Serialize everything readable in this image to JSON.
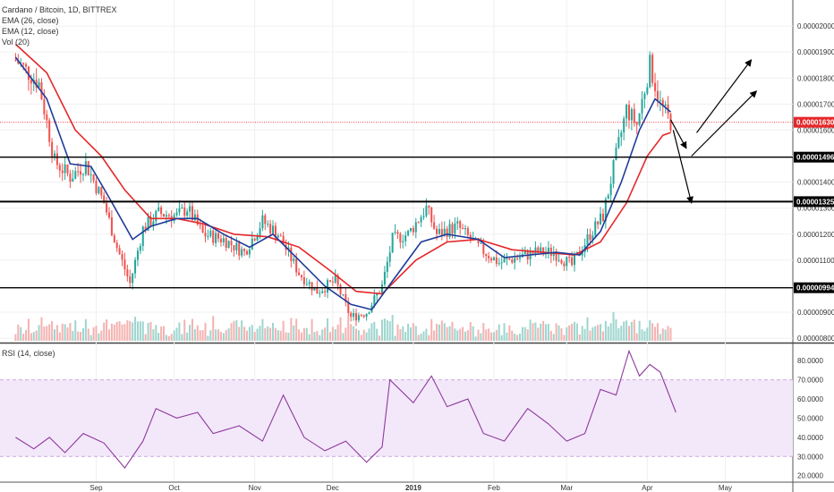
{
  "chart_data": [
    {
      "type": "candlestick",
      "title": "Cardano / Bitcoin, 1D, BITTREX",
      "indicators": [
        "EMA (26, close)",
        "EMA (12, close)",
        "Vol (20)"
      ],
      "y_axis_ticks": [
        "0.00002000",
        "0.00001900",
        "0.00001800",
        "0.00001700",
        "0.00001600",
        "0.00001500",
        "0.00001400",
        "0.00001300",
        "0.00001200",
        "0.00001100",
        "0.00001000",
        "0.00000900",
        "0.00000800"
      ],
      "ylim": [
        7.9e-06,
        2.1e-05
      ],
      "x_axis_ticks": [
        "Sep",
        "Oct",
        "Nov",
        "Dec",
        "2019",
        "Feb",
        "Mar",
        "Apr",
        "May"
      ],
      "price_levels": [
        {
          "label": "0.00001496",
          "value": 1.496e-05
        },
        {
          "label": "0.00001325",
          "value": 1.325e-05
        },
        {
          "label": "0.00000994",
          "value": 9.94e-06
        }
      ],
      "current_price": {
        "label": "0.00001630",
        "value": 1.63e-05
      },
      "close_series": [
        {
          "date": "2018-08-01",
          "close": 1.87e-05
        },
        {
          "date": "2018-08-10",
          "close": 1.78e-05
        },
        {
          "date": "2018-08-16",
          "close": 1.48e-05
        },
        {
          "date": "2018-08-22",
          "close": 1.42e-05
        },
        {
          "date": "2018-08-28",
          "close": 1.47e-05
        },
        {
          "date": "2018-09-04",
          "close": 1.32e-05
        },
        {
          "date": "2018-09-09",
          "close": 1.15e-05
        },
        {
          "date": "2018-09-14",
          "close": 1.01e-05
        },
        {
          "date": "2018-09-19",
          "close": 1.22e-05
        },
        {
          "date": "2018-09-25",
          "close": 1.28e-05
        },
        {
          "date": "2018-10-02",
          "close": 1.27e-05
        },
        {
          "date": "2018-10-06",
          "close": 1.3e-05
        },
        {
          "date": "2018-10-12",
          "close": 1.2e-05
        },
        {
          "date": "2018-10-20",
          "close": 1.18e-05
        },
        {
          "date": "2018-10-28",
          "close": 1.13e-05
        },
        {
          "date": "2018-11-04",
          "close": 1.25e-05
        },
        {
          "date": "2018-11-10",
          "close": 1.2e-05
        },
        {
          "date": "2018-11-18",
          "close": 1.05e-05
        },
        {
          "date": "2018-11-25",
          "close": 9.8e-06
        },
        {
          "date": "2018-12-02",
          "close": 1.02e-05
        },
        {
          "date": "2018-12-08",
          "close": 8.8e-06
        },
        {
          "date": "2018-12-14",
          "close": 9e-06
        },
        {
          "date": "2018-12-20",
          "close": 1e-05
        },
        {
          "date": "2018-12-24",
          "close": 1.18e-05
        },
        {
          "date": "2018-12-30",
          "close": 1.2e-05
        },
        {
          "date": "2019-01-06",
          "close": 1.3e-05
        },
        {
          "date": "2019-01-10",
          "close": 1.2e-05
        },
        {
          "date": "2019-01-18",
          "close": 1.23e-05
        },
        {
          "date": "2019-01-26",
          "close": 1.15e-05
        },
        {
          "date": "2019-02-03",
          "close": 1.09e-05
        },
        {
          "date": "2019-02-10",
          "close": 1.11e-05
        },
        {
          "date": "2019-02-17",
          "close": 1.13e-05
        },
        {
          "date": "2019-02-24",
          "close": 1.13e-05
        },
        {
          "date": "2019-03-03",
          "close": 1.08e-05
        },
        {
          "date": "2019-03-10",
          "close": 1.2e-05
        },
        {
          "date": "2019-03-15",
          "close": 1.27e-05
        },
        {
          "date": "2019-03-20",
          "close": 1.5e-05
        },
        {
          "date": "2019-03-24",
          "close": 1.68e-05
        },
        {
          "date": "2019-03-28",
          "close": 1.62e-05
        },
        {
          "date": "2019-04-02",
          "close": 1.85e-05
        },
        {
          "date": "2019-04-06",
          "close": 1.7e-05
        },
        {
          "date": "2019-04-10",
          "close": 1.63e-05
        }
      ],
      "ema_12_series": [
        {
          "date": "2018-08-01",
          "value": 1.88e-05
        },
        {
          "date": "2018-08-13",
          "value": 1.72e-05
        },
        {
          "date": "2018-08-22",
          "value": 1.47e-05
        },
        {
          "date": "2018-08-30",
          "value": 1.46e-05
        },
        {
          "date": "2018-09-06",
          "value": 1.34e-05
        },
        {
          "date": "2018-09-15",
          "value": 1.18e-05
        },
        {
          "date": "2018-09-22",
          "value": 1.23e-05
        },
        {
          "date": "2018-10-02",
          "value": 1.26e-05
        },
        {
          "date": "2018-10-10",
          "value": 1.26e-05
        },
        {
          "date": "2018-10-20",
          "value": 1.2e-05
        },
        {
          "date": "2018-10-30",
          "value": 1.15e-05
        },
        {
          "date": "2018-11-08",
          "value": 1.2e-05
        },
        {
          "date": "2018-11-18",
          "value": 1.1e-05
        },
        {
          "date": "2018-11-28",
          "value": 1e-05
        },
        {
          "date": "2018-12-08",
          "value": 9.3e-06
        },
        {
          "date": "2018-12-16",
          "value": 9.1e-06
        },
        {
          "date": "2018-12-24",
          "value": 1.02e-05
        },
        {
          "date": "2019-01-04",
          "value": 1.17e-05
        },
        {
          "date": "2019-01-14",
          "value": 1.2e-05
        },
        {
          "date": "2019-01-26",
          "value": 1.18e-05
        },
        {
          "date": "2019-02-05",
          "value": 1.11e-05
        },
        {
          "date": "2019-02-15",
          "value": 1.12e-05
        },
        {
          "date": "2019-02-25",
          "value": 1.13e-05
        },
        {
          "date": "2019-03-06",
          "value": 1.12e-05
        },
        {
          "date": "2019-03-14",
          "value": 1.21e-05
        },
        {
          "date": "2019-03-22",
          "value": 1.4e-05
        },
        {
          "date": "2019-03-29",
          "value": 1.6e-05
        },
        {
          "date": "2019-04-04",
          "value": 1.72e-05
        },
        {
          "date": "2019-04-10",
          "value": 1.67e-05
        }
      ],
      "ema_26_series": [
        {
          "date": "2018-08-01",
          "value": 1.93e-05
        },
        {
          "date": "2018-08-13",
          "value": 1.82e-05
        },
        {
          "date": "2018-08-24",
          "value": 1.6e-05
        },
        {
          "date": "2018-09-03",
          "value": 1.5e-05
        },
        {
          "date": "2018-09-12",
          "value": 1.37e-05
        },
        {
          "date": "2018-09-22",
          "value": 1.26e-05
        },
        {
          "date": "2018-10-02",
          "value": 1.26e-05
        },
        {
          "date": "2018-10-12",
          "value": 1.24e-05
        },
        {
          "date": "2018-10-24",
          "value": 1.2e-05
        },
        {
          "date": "2018-11-06",
          "value": 1.19e-05
        },
        {
          "date": "2018-11-18",
          "value": 1.15e-05
        },
        {
          "date": "2018-11-30",
          "value": 1.06e-05
        },
        {
          "date": "2018-12-10",
          "value": 9.8e-06
        },
        {
          "date": "2018-12-20",
          "value": 9.7e-06
        },
        {
          "date": "2019-01-02",
          "value": 1.1e-05
        },
        {
          "date": "2019-01-14",
          "value": 1.17e-05
        },
        {
          "date": "2019-01-26",
          "value": 1.18e-05
        },
        {
          "date": "2019-02-08",
          "value": 1.14e-05
        },
        {
          "date": "2019-02-20",
          "value": 1.13e-05
        },
        {
          "date": "2019-03-04",
          "value": 1.12e-05
        },
        {
          "date": "2019-03-14",
          "value": 1.17e-05
        },
        {
          "date": "2019-03-24",
          "value": 1.32e-05
        },
        {
          "date": "2019-04-01",
          "value": 1.5e-05
        },
        {
          "date": "2019-04-07",
          "value": 1.58e-05
        },
        {
          "date": "2019-04-10",
          "value": 1.59e-05
        }
      ],
      "annotation_arrows": [
        {
          "from": {
            "date": "2019-04-10",
            "value": 1.64e-05
          },
          "to": {
            "date": "2019-04-16",
            "value": 1.53e-05
          }
        },
        {
          "from": {
            "date": "2019-04-20",
            "value": 1.59e-05
          },
          "to": {
            "date": "2019-05-11",
            "value": 1.87e-05
          }
        },
        {
          "from": {
            "date": "2019-04-11",
            "value": 1.6e-05
          },
          "to": {
            "date": "2019-04-18",
            "value": 1.32e-05
          }
        },
        {
          "from": {
            "date": "2019-04-18",
            "value": 1.5e-05
          },
          "to": {
            "date": "2019-05-13",
            "value": 1.75e-05
          }
        }
      ]
    },
    {
      "type": "line",
      "title": "RSI (14, close)",
      "y_axis_ticks": [
        "80.0000",
        "70.0000",
        "60.0000",
        "50.0000",
        "40.0000",
        "30.0000",
        "20.0000"
      ],
      "ylim": [
        18,
        88
      ],
      "band": [
        30,
        70
      ],
      "series": [
        {
          "date": "2018-08-01",
          "value": 40
        },
        {
          "date": "2018-08-08",
          "value": 34
        },
        {
          "date": "2018-08-14",
          "value": 40
        },
        {
          "date": "2018-08-20",
          "value": 32
        },
        {
          "date": "2018-08-27",
          "value": 42
        },
        {
          "date": "2018-09-04",
          "value": 37
        },
        {
          "date": "2018-09-12",
          "value": 24
        },
        {
          "date": "2018-09-19",
          "value": 38
        },
        {
          "date": "2018-09-24",
          "value": 55
        },
        {
          "date": "2018-10-02",
          "value": 50
        },
        {
          "date": "2018-10-10",
          "value": 53
        },
        {
          "date": "2018-10-16",
          "value": 42
        },
        {
          "date": "2018-10-26",
          "value": 46
        },
        {
          "date": "2018-11-04",
          "value": 38
        },
        {
          "date": "2018-11-12",
          "value": 62
        },
        {
          "date": "2018-11-20",
          "value": 40
        },
        {
          "date": "2018-11-28",
          "value": 33
        },
        {
          "date": "2018-12-06",
          "value": 38
        },
        {
          "date": "2018-12-14",
          "value": 27
        },
        {
          "date": "2018-12-20",
          "value": 35
        },
        {
          "date": "2018-12-23",
          "value": 70
        },
        {
          "date": "2019-01-01",
          "value": 58
        },
        {
          "date": "2019-01-08",
          "value": 72
        },
        {
          "date": "2019-01-14",
          "value": 56
        },
        {
          "date": "2019-01-22",
          "value": 60
        },
        {
          "date": "2019-01-28",
          "value": 42
        },
        {
          "date": "2019-02-05",
          "value": 38
        },
        {
          "date": "2019-02-14",
          "value": 55
        },
        {
          "date": "2019-02-22",
          "value": 47
        },
        {
          "date": "2019-03-01",
          "value": 38
        },
        {
          "date": "2019-03-08",
          "value": 42
        },
        {
          "date": "2019-03-14",
          "value": 65
        },
        {
          "date": "2019-03-20",
          "value": 62
        },
        {
          "date": "2019-03-25",
          "value": 85
        },
        {
          "date": "2019-03-29",
          "value": 72
        },
        {
          "date": "2019-04-02",
          "value": 78
        },
        {
          "date": "2019-04-06",
          "value": 74
        },
        {
          "date": "2019-04-12",
          "value": 53
        }
      ]
    }
  ]
}
